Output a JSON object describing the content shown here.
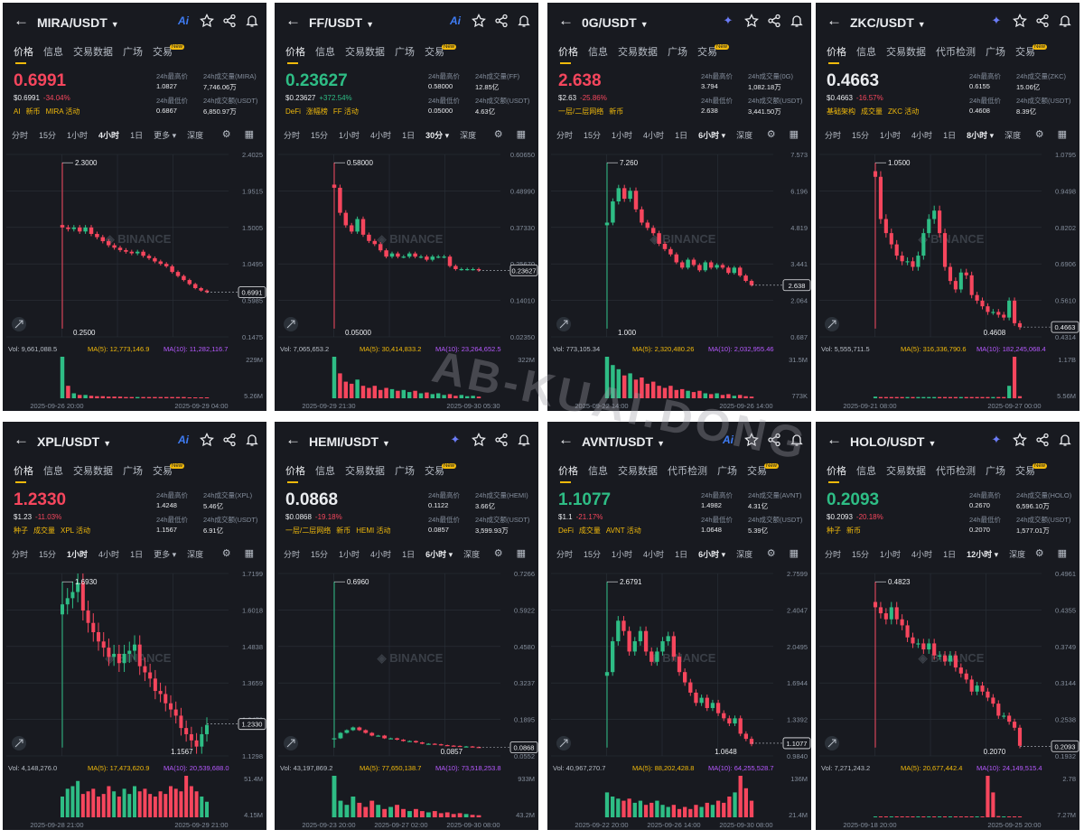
{
  "watermark": "AB-KUAI.DONG",
  "panels": [
    {
      "pair": "MIRA/USDT",
      "ai_style": "text",
      "tabs": [
        "价格",
        "信息",
        "交易数据",
        "广场",
        "交易"
      ],
      "price": "0.6991",
      "direction": "down",
      "price_usd": "$0.6991",
      "change": "-34.04%",
      "tags": [
        "AI",
        "新币",
        "MIRA 活动"
      ],
      "stats": {
        "high_label": "24h最高价",
        "high": "1.0827",
        "vol_label": "24h成交量(MIRA)",
        "vol": "7,746.06万",
        "low_label": "24h最低价",
        "low": "0.6867",
        "turnover_label": "24h成交额(USDT)",
        "turnover": "6,850.97万"
      },
      "timeframes": [
        "分时",
        "15分",
        "1小时",
        "4小时",
        "1日",
        "更多 ▾",
        "深度"
      ],
      "selected_tf": 3,
      "chart_data": {
        "type": "candlestick",
        "y_ticks": [
          "2.4025",
          "1.9515",
          "1.5005",
          "1.0495",
          "0.5985",
          "0.1475"
        ],
        "ylim": [
          0.1475,
          2.4025
        ],
        "high_label": "2.3000",
        "low_label": "0.2500",
        "last_price": "0.6991",
        "closes": [
          1.5,
          1.48,
          1.5,
          1.45,
          1.5,
          1.42,
          1.38,
          1.33,
          1.28,
          1.25,
          1.22,
          1.2,
          1.18,
          1.2,
          1.15,
          1.12,
          1.08,
          1.05,
          1.02,
          0.95,
          0.9,
          0.85,
          0.8,
          0.75,
          0.72,
          0.7
        ],
        "vol_text": "Vol: 9,661,088.5",
        "ma5_text": "MA(5): 12,773,146.9",
        "ma10_text": "MA(10): 11,282,116.7",
        "vol_ticks": [
          "229M",
          "5.26M"
        ],
        "volumes": [
          100,
          30,
          12,
          8,
          8,
          6,
          5,
          5,
          4,
          4,
          4,
          3,
          3,
          3,
          3,
          3,
          3,
          3,
          3,
          3,
          3,
          3,
          2,
          2,
          2,
          2
        ],
        "dates": [
          "2025-09-26 20:00",
          "2025-09-29 04:00"
        ]
      }
    },
    {
      "pair": "FF/USDT",
      "ai_style": "text",
      "tabs": [
        "价格",
        "信息",
        "交易数据",
        "广场",
        "交易"
      ],
      "price": "0.23627",
      "direction": "up",
      "price_usd": "$0.23627",
      "change": "+372.54%",
      "tags": [
        "DeFi",
        "涨幅榜",
        "FF 活动"
      ],
      "stats": {
        "high_label": "24h最高价",
        "high": "0.58000",
        "vol_label": "24h成交量(FF)",
        "vol": "12.85亿",
        "low_label": "24h最低价",
        "low": "0.05000",
        "turnover_label": "24h成交额(USDT)",
        "turnover": "4.63亿"
      },
      "timeframes": [
        "分时",
        "15分",
        "1小时",
        "4小时",
        "1日",
        "30分 ▾",
        "深度"
      ],
      "selected_tf": 5,
      "chart_data": {
        "type": "candlestick",
        "y_ticks": [
          "0.60650",
          "0.48990",
          "0.37330",
          "0.25670",
          "0.14010",
          "0.02350"
        ],
        "ylim": [
          0.0235,
          0.6065
        ],
        "high_label": "0.58000",
        "low_label": "0.05000",
        "last_price": "0.23627",
        "closes": [
          0.5,
          0.42,
          0.38,
          0.36,
          0.4,
          0.35,
          0.33,
          0.32,
          0.3,
          0.28,
          0.29,
          0.28,
          0.28,
          0.29,
          0.28,
          0.28,
          0.27,
          0.28,
          0.28,
          0.28,
          0.25,
          0.24,
          0.24,
          0.24,
          0.24,
          0.236
        ],
        "vol_text": "Vol: 7,065,653.2",
        "ma5_text": "MA(5): 30,414,833.2",
        "ma10_text": "MA(10): 23,264,652.5",
        "vol_ticks": [
          "322M",
          ""
        ],
        "volumes": [
          100,
          60,
          40,
          35,
          45,
          30,
          25,
          30,
          20,
          25,
          22,
          18,
          20,
          15,
          18,
          12,
          14,
          10,
          12,
          8,
          10,
          6,
          8,
          5,
          6,
          4
        ],
        "dates": [
          "2025-09-29 21:30",
          "2025-09-30 05:30"
        ]
      }
    },
    {
      "pair": "0G/USDT",
      "ai_style": "star",
      "tabs": [
        "价格",
        "信息",
        "交易数据",
        "广场",
        "交易"
      ],
      "price": "2.638",
      "direction": "down",
      "price_usd": "$2.63",
      "change": "-25.86%",
      "tags": [
        "一层/二层网络",
        "新币"
      ],
      "stats": {
        "high_label": "24h最高价",
        "high": "3.794",
        "vol_label": "24h成交量(0G)",
        "vol": "1,082.18万",
        "low_label": "24h最低价",
        "low": "2.638",
        "turnover_label": "24h成交额(USDT)",
        "turnover": "3,441.50万"
      },
      "timeframes": [
        "分时",
        "15分",
        "1小时",
        "4小时",
        "1日",
        "6小时 ▾",
        "深度"
      ],
      "selected_tf": 5,
      "chart_data": {
        "type": "candlestick",
        "y_ticks": [
          "7.573",
          "6.196",
          "4.819",
          "3.441",
          "2.064",
          "0.687"
        ],
        "ylim": [
          0.687,
          7.573
        ],
        "high_label": "7.260",
        "low_label": "1.000",
        "last_price": "2.638",
        "closes": [
          5.0,
          5.8,
          6.3,
          5.9,
          6.2,
          5.5,
          5.0,
          4.8,
          4.6,
          4.2,
          4.0,
          3.8,
          3.5,
          3.3,
          3.6,
          3.4,
          3.2,
          3.5,
          3.3,
          3.4,
          3.3,
          3.1,
          3.3,
          3.0,
          2.8,
          2.64
        ],
        "vol_text": "Vol: 773,105.34",
        "ma5_text": "MA(5): 2,320,480.26",
        "ma10_text": "MA(10): 2,032,955.46",
        "vol_ticks": [
          "31.5M",
          "773K"
        ],
        "volumes": [
          100,
          80,
          70,
          55,
          60,
          45,
          50,
          35,
          40,
          30,
          25,
          30,
          20,
          22,
          18,
          15,
          18,
          12,
          10,
          12,
          8,
          10,
          6,
          8,
          5,
          4
        ],
        "dates": [
          "2025-09-22 14:00",
          "2025-09-26 14:00"
        ]
      }
    },
    {
      "pair": "ZKC/USDT",
      "ai_style": "star",
      "tabs": [
        "价格",
        "信息",
        "交易数据",
        "代币检测",
        "广场",
        "交易"
      ],
      "price": "0.4663",
      "direction": "neutral",
      "price_usd": "$0.4663",
      "change": "-16.57%",
      "tags": [
        "基础架构",
        "成交量",
        "ZKC 活动"
      ],
      "stats": {
        "high_label": "24h最高价",
        "high": "0.6155",
        "vol_label": "24h成交量(ZKC)",
        "vol": "15.06亿",
        "low_label": "24h最低价",
        "low": "0.4608",
        "turnover_label": "24h成交额(USDT)",
        "turnover": "8.39亿"
      },
      "timeframes": [
        "分时",
        "15分",
        "1小时",
        "4小时",
        "1日",
        "8小时 ▾",
        "深度"
      ],
      "selected_tf": 5,
      "chart_data": {
        "type": "candlestick",
        "y_ticks": [
          "1.0795",
          "0.9498",
          "0.8202",
          "0.6906",
          "0.5610",
          "0.4314"
        ],
        "ylim": [
          0.4314,
          1.0795
        ],
        "high_label": "1.0500",
        "low_label": "0.4608",
        "last_price": "0.4663",
        "closes": [
          1.0,
          0.85,
          0.8,
          0.76,
          0.72,
          0.7,
          0.7,
          0.68,
          0.72,
          0.8,
          0.85,
          0.88,
          0.8,
          0.68,
          0.63,
          0.6,
          0.66,
          0.65,
          0.58,
          0.56,
          0.54,
          0.52,
          0.52,
          0.51,
          0.5,
          0.56,
          0.48,
          0.466
        ],
        "vol_text": "Vol: 5,555,711.5",
        "ma5_text": "MA(5): 316,336,790.6",
        "ma10_text": "MA(10): 182,245,068.4",
        "vol_ticks": [
          "1.17B",
          "5.56M"
        ],
        "volumes": [
          4,
          3,
          3,
          3,
          3,
          3,
          3,
          3,
          3,
          3,
          3,
          3,
          3,
          3,
          3,
          3,
          3,
          3,
          3,
          3,
          3,
          3,
          3,
          3,
          3,
          30,
          100,
          5
        ],
        "dates": [
          "2025-09-21 08:00",
          "2025-09-27 00:00"
        ]
      }
    },
    {
      "pair": "XPL/USDT",
      "ai_style": "text",
      "tabs": [
        "价格",
        "信息",
        "交易数据",
        "广场",
        "交易"
      ],
      "price": "1.2330",
      "direction": "down",
      "price_usd": "$1.23",
      "change": "-11.03%",
      "tags": [
        "种子",
        "成交量",
        "XPL 活动"
      ],
      "stats": {
        "high_label": "24h最高价",
        "high": "1.4248",
        "vol_label": "24h成交量(XPL)",
        "vol": "5.46亿",
        "low_label": "24h最低价",
        "low": "1.1567",
        "turnover_label": "24h成交额(USDT)",
        "turnover": "6.91亿"
      },
      "timeframes": [
        "分时",
        "15分",
        "1小时",
        "4小时",
        "1日",
        "更多 ▾",
        "深度"
      ],
      "selected_tf": 2,
      "chart_data": {
        "type": "candlestick",
        "y_ticks": [
          "1.7199",
          "1.6018",
          "1.4838",
          "1.3659",
          "1.2479",
          "1.1298"
        ],
        "ylim": [
          1.1298,
          1.7199
        ],
        "high_label": "1.6930",
        "low_label": "1.1567",
        "last_price": "1.2330",
        "closes": [
          1.62,
          1.64,
          1.66,
          1.69,
          1.6,
          1.56,
          1.53,
          1.5,
          1.48,
          1.45,
          1.46,
          1.43,
          1.46,
          1.47,
          1.49,
          1.42,
          1.4,
          1.38,
          1.34,
          1.33,
          1.3,
          1.28,
          1.26,
          1.22,
          1.2,
          1.18,
          1.16,
          1.2,
          1.23
        ],
        "vol_text": "Vol: 4,148,276.0",
        "ma5_text": "MA(5): 17,473,620.9",
        "ma10_text": "MA(10): 20,539,688.0",
        "vol_ticks": [
          "51.4M",
          "4.15M"
        ],
        "volumes": [
          40,
          55,
          60,
          70,
          45,
          50,
          55,
          40,
          45,
          60,
          50,
          40,
          55,
          45,
          60,
          50,
          55,
          45,
          40,
          50,
          45,
          60,
          55,
          50,
          80,
          60,
          50,
          40,
          30
        ],
        "dates": [
          "2025-09-28 21:00",
          "2025-09-29 21:00"
        ]
      }
    },
    {
      "pair": "HEMI/USDT",
      "ai_style": "star",
      "tabs": [
        "价格",
        "信息",
        "交易数据",
        "广场",
        "交易"
      ],
      "price": "0.0868",
      "direction": "neutral",
      "price_usd": "$0.0868",
      "change": "-19.18%",
      "tags": [
        "一层/二层网络",
        "新币",
        "HEMI 活动"
      ],
      "stats": {
        "high_label": "24h最高价",
        "high": "0.1122",
        "vol_label": "24h成交量(HEMI)",
        "vol": "3.66亿",
        "low_label": "24h最低价",
        "low": "0.0857",
        "turnover_label": "24h成交额(USDT)",
        "turnover": "3,599.93万"
      },
      "timeframes": [
        "分时",
        "15分",
        "1小时",
        "4小时",
        "1日",
        "6小时 ▾",
        "深度"
      ],
      "selected_tf": 5,
      "chart_data": {
        "type": "candlestick",
        "y_ticks": [
          "0.7266",
          "0.5922",
          "0.4580",
          "0.3237",
          "0.1895",
          "0.0552"
        ],
        "ylim": [
          0.0552,
          0.7266
        ],
        "high_label": "0.6960",
        "low_label": "0.0857",
        "last_price": "0.0868",
        "closes": [
          0.12,
          0.14,
          0.15,
          0.16,
          0.15,
          0.14,
          0.13,
          0.13,
          0.12,
          0.12,
          0.115,
          0.11,
          0.11,
          0.105,
          0.1,
          0.1,
          0.098,
          0.095,
          0.093,
          0.092,
          0.09,
          0.09,
          0.088,
          0.087
        ],
        "vol_text": "Vol: 43,197,869.2",
        "ma5_text": "MA(5): 77,650,138.7",
        "ma10_text": "MA(10): 73,518,253.8",
        "vol_ticks": [
          "933M",
          "43.2M"
        ],
        "volumes": [
          100,
          40,
          30,
          50,
          35,
          25,
          40,
          30,
          20,
          25,
          30,
          20,
          15,
          20,
          15,
          12,
          15,
          10,
          12,
          8,
          10,
          8,
          6,
          5
        ],
        "dates": [
          "2025-09-23 20:00",
          "2025-09-27 02:00",
          "2025-09-30 08:00"
        ]
      }
    },
    {
      "pair": "AVNT/USDT",
      "ai_style": "text",
      "tabs": [
        "价格",
        "信息",
        "交易数据",
        "代币检测",
        "广场",
        "交易"
      ],
      "price": "1.1077",
      "direction": "up",
      "price_usd": "$1.1",
      "change": "-21.17%",
      "tags": [
        "DeFi",
        "成交量",
        "AVNT 活动"
      ],
      "stats": {
        "high_label": "24h最高价",
        "high": "1.4982",
        "vol_label": "24h成交量(AVNT)",
        "vol": "4.31亿",
        "low_label": "24h最低价",
        "low": "1.0648",
        "turnover_label": "24h成交额(USDT)",
        "turnover": "5.39亿"
      },
      "timeframes": [
        "分时",
        "15分",
        "1小时",
        "4小时",
        "1日",
        "6小时 ▾",
        "深度"
      ],
      "selected_tf": 5,
      "chart_data": {
        "type": "candlestick",
        "y_ticks": [
          "2.7599",
          "2.4047",
          "2.0495",
          "1.6944",
          "1.3392",
          "0.9840"
        ],
        "ylim": [
          0.984,
          2.7599
        ],
        "high_label": "2.6791",
        "low_label": "1.0648",
        "last_price": "1.1077",
        "closes": [
          1.8,
          2.1,
          2.3,
          2.2,
          2.0,
          2.1,
          2.2,
          2.0,
          1.9,
          2.0,
          2.1,
          2.15,
          1.95,
          1.8,
          1.7,
          1.6,
          1.5,
          1.55,
          1.45,
          1.5,
          1.4,
          1.35,
          1.3,
          1.35,
          1.2,
          1.15,
          1.1
        ],
        "vol_text": "Vol: 40,967,270.7",
        "ma5_text": "MA(5): 88,202,428.8",
        "ma10_text": "MA(10): 64,255,528.7",
        "vol_ticks": [
          "136M",
          "21.4M"
        ],
        "volumes": [
          60,
          50,
          45,
          40,
          45,
          35,
          40,
          30,
          35,
          40,
          30,
          25,
          30,
          20,
          25,
          20,
          30,
          25,
          35,
          30,
          40,
          35,
          50,
          60,
          100,
          70,
          40
        ],
        "dates": [
          "2025-09-22 20:00",
          "2025-09-26 14:00",
          "2025-09-30 08:00"
        ]
      }
    },
    {
      "pair": "HOLO/USDT",
      "ai_style": "star",
      "tabs": [
        "价格",
        "信息",
        "交易数据",
        "代币检测",
        "广场",
        "交易"
      ],
      "price": "0.2093",
      "direction": "up",
      "price_usd": "$0.2093",
      "change": "-20.18%",
      "tags": [
        "种子",
        "新币"
      ],
      "stats": {
        "high_label": "24h最高价",
        "high": "0.2670",
        "vol_label": "24h成交量(HOLO)",
        "vol": "6,596.10万",
        "low_label": "24h最低价",
        "low": "0.2070",
        "turnover_label": "24h成交额(USDT)",
        "turnover": "1,577.01万"
      },
      "timeframes": [
        "分时",
        "15分",
        "1小时",
        "4小时",
        "1日",
        "12小时 ▾",
        "深度"
      ],
      "selected_tf": 5,
      "chart_data": {
        "type": "candlestick",
        "y_ticks": [
          "0.4961",
          "0.4355",
          "0.3749",
          "0.3144",
          "0.2538",
          "0.1932"
        ],
        "ylim": [
          0.1932,
          0.4961
        ],
        "high_label": "0.4823",
        "low_label": "0.2070",
        "last_price": "0.2093",
        "closes": [
          0.44,
          0.43,
          0.42,
          0.44,
          0.42,
          0.41,
          0.39,
          0.38,
          0.38,
          0.37,
          0.38,
          0.36,
          0.36,
          0.35,
          0.36,
          0.34,
          0.33,
          0.32,
          0.3,
          0.31,
          0.3,
          0.29,
          0.28,
          0.26,
          0.26,
          0.25,
          0.24,
          0.21
        ],
        "vol_text": "Vol: 7,271,243.2",
        "ma5_text": "MA(5): 20,677,442.4",
        "ma10_text": "MA(10): 24,149,515.4",
        "vol_ticks": [
          "2.78",
          "7.27M"
        ],
        "volumes": [
          2,
          2,
          2,
          2,
          2,
          2,
          2,
          2,
          2,
          2,
          2,
          2,
          2,
          2,
          2,
          2,
          2,
          2,
          2,
          2,
          2,
          100,
          60,
          3,
          2,
          2,
          2,
          2
        ],
        "dates": [
          "2025-09-18 20:00",
          "2025-09-25 20:00"
        ]
      }
    }
  ],
  "colors": {
    "up": "#2ebd85",
    "down": "#f6465d",
    "accent": "#f0b90b",
    "bg": "#181a20",
    "ma5": "#f0b90b",
    "ma10": "#b659ff"
  }
}
